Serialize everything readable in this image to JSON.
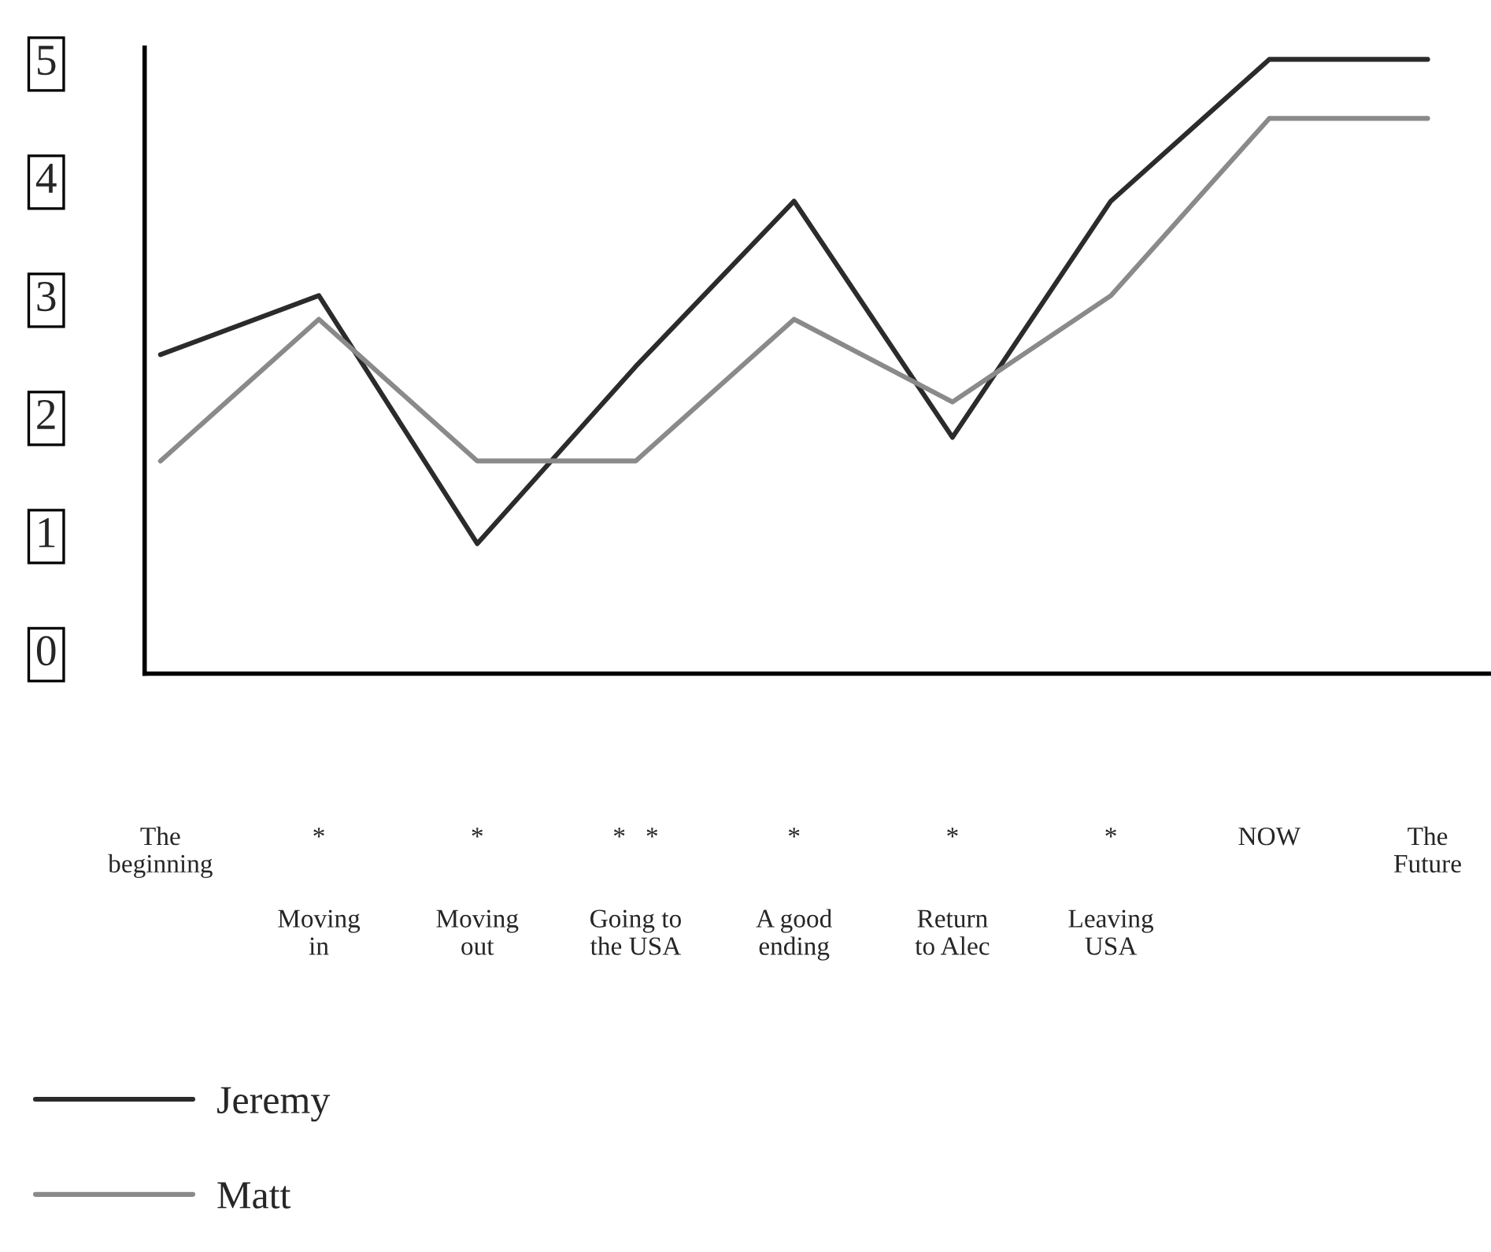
{
  "chart_data": {
    "type": "line",
    "categories": [
      "The\nbeginning",
      "*\n\n\nMoving\nin",
      "*\n\n\nMoving\nout",
      "*   *\n\n\nGoing to\nthe USA",
      "*\n\n\nA good\nending",
      "*\n\n\nReturn\nto Alec",
      "*\n\n\nLeaving\nUSA",
      "NOW",
      "The\nFuture"
    ],
    "series": [
      {
        "name": "Jeremy",
        "color": "#2b2b2b",
        "values": [
          2.5,
          3.0,
          0.9,
          2.4,
          3.8,
          1.8,
          3.8,
          5.0,
          5.0
        ]
      },
      {
        "name": "Matt",
        "color": "#8a8a8a",
        "values": [
          1.6,
          2.8,
          1.6,
          1.6,
          2.8,
          2.1,
          3.0,
          4.5,
          4.5
        ]
      }
    ],
    "ylim": [
      -0.2,
      5.1
    ],
    "yticks": [
      0,
      1,
      2,
      3,
      4,
      5
    ],
    "grid": false,
    "legend": "bottom left",
    "marker": "none",
    "line_style": "solid"
  }
}
